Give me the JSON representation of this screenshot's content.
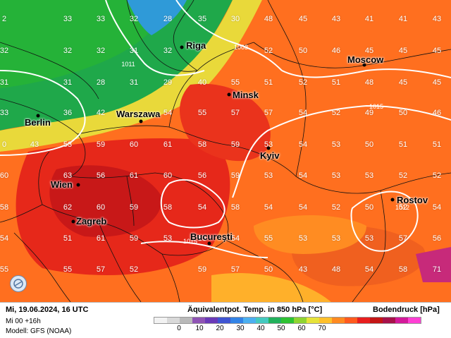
{
  "legend": {
    "datetime": "Mi, 19.06.2024, 16 UTC",
    "run": "Mi 00 +16h",
    "model": "Modell: GFS (NOAA)",
    "variable": "Äquivalentpot. Temp. in 850 hPa [°C]",
    "pressure_label": "Bodendruck [hPa]",
    "scale_ticks": [
      "0",
      "10",
      "20",
      "30",
      "40",
      "50",
      "60",
      "70"
    ],
    "scale_colors": [
      "#f2f2f2",
      "#d9d9d9",
      "#b9b9b9",
      "#8f54b5",
      "#6a3ab8",
      "#3f55d2",
      "#3283e6",
      "#4cb0f0",
      "#44c9c0",
      "#22b15c",
      "#2ec233",
      "#8fd431",
      "#e6e33a",
      "#ffc02b",
      "#ff8a20",
      "#ff5a1e",
      "#e81e1e",
      "#c41515",
      "#a7124a",
      "#d31a9a",
      "#ff3fd4"
    ]
  },
  "cities": [
    {
      "name": "Riga"
    },
    {
      "name": "Moscow"
    },
    {
      "name": "Minsk"
    },
    {
      "name": "Berlin"
    },
    {
      "name": "Warszawa"
    },
    {
      "name": "Kyiv"
    },
    {
      "name": "Wien"
    },
    {
      "name": "Rostov"
    },
    {
      "name": "Zagreb"
    },
    {
      "name": "București"
    }
  ],
  "isobar_labels": [
    "1003",
    "1011",
    "1015",
    "1012",
    "1015"
  ],
  "grid_values": [
    [
      "2",
      "33",
      "33",
      "32",
      "28",
      "35",
      "30",
      "48",
      "45",
      "43",
      "41",
      "41",
      "43"
    ],
    [
      "32",
      "32",
      "32",
      "31",
      "32",
      "",
      "",
      "52",
      "50",
      "46",
      "45",
      "45",
      "45"
    ],
    [
      "31",
      "31",
      "28",
      "31",
      "29",
      "40",
      "55",
      "51",
      "52",
      "51",
      "48",
      "45",
      "45"
    ],
    [
      "33",
      "36",
      "42",
      "",
      "54",
      "55",
      "57",
      "57",
      "54",
      "52",
      "49",
      "50",
      "46"
    ],
    [
      "0",
      "43",
      "53",
      "59",
      "60",
      "61",
      "58",
      "59",
      "53",
      "54",
      "53",
      "50",
      "51",
      "51"
    ],
    [
      "60",
      "63",
      "56",
      "61",
      "60",
      "56",
      "59",
      "53",
      "54",
      "53",
      "53",
      "52",
      "52"
    ],
    [
      "58",
      "62",
      "60",
      "59",
      "58",
      "54",
      "58",
      "54",
      "54",
      "52",
      "50",
      "52",
      "54"
    ],
    [
      "54",
      "51",
      "61",
      "59",
      "53",
      "55",
      "54",
      "55",
      "53",
      "53",
      "53",
      "57",
      "56"
    ],
    [
      "55",
      "55",
      "57",
      "52",
      "",
      "59",
      "57",
      "50",
      "43",
      "48",
      "54",
      "58",
      "71"
    ]
  ]
}
